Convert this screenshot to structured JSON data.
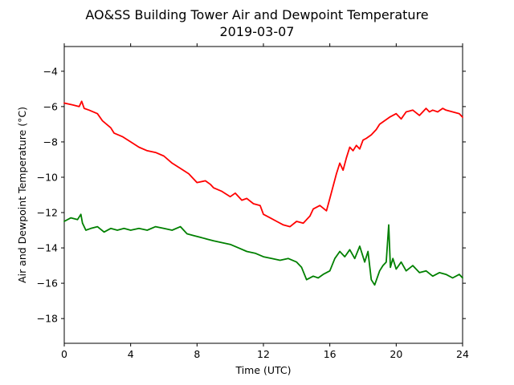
{
  "chart_data": {
    "type": "line",
    "title": "AO&SS Building Tower Air and Dewpoint Temperature",
    "subtitle": "2019-03-07",
    "xlabel": "Time (UTC)",
    "ylabel": "Air and Dewpoint Temperature (°C)",
    "xlim": [
      0,
      24
    ],
    "ylim": [
      -19.4,
      -2.6
    ],
    "xticks": [
      "0",
      "4",
      "8",
      "12",
      "16",
      "20",
      "24"
    ],
    "yticks": [
      "−4",
      "−6",
      "−8",
      "−10",
      "−12",
      "−14",
      "−16",
      "−18"
    ],
    "ytick_values": [
      -4,
      -6,
      -8,
      -10,
      -12,
      -14,
      -16,
      -18
    ],
    "grid": false,
    "legend": "none",
    "series": [
      {
        "color": "#ff0000",
        "x": [
          0,
          0.5,
          0.9,
          1.05,
          1.2,
          1.5,
          2.0,
          2.3,
          2.8,
          3.0,
          3.5,
          4.0,
          4.5,
          5.0,
          5.5,
          6.0,
          6.5,
          7.0,
          7.5,
          7.8,
          8.0,
          8.5,
          8.8,
          9.0,
          9.5,
          10.0,
          10.3,
          10.7,
          11.0,
          11.4,
          11.8,
          12.0,
          12.4,
          12.8,
          13.2,
          13.6,
          14.0,
          14.4,
          14.8,
          15.0,
          15.4,
          15.8,
          16.0,
          16.2,
          16.4,
          16.6,
          16.8,
          17.0,
          17.2,
          17.4,
          17.6,
          17.8,
          18.0,
          18.2,
          18.5,
          18.8,
          19.0,
          19.3,
          19.6,
          20.0,
          20.3,
          20.6,
          21.0,
          21.4,
          21.8,
          22.0,
          22.2,
          22.5,
          22.8,
          23.0,
          23.4,
          23.8,
          24.0
        ],
        "y": [
          -5.8,
          -5.9,
          -6.0,
          -5.7,
          -6.1,
          -6.2,
          -6.4,
          -6.8,
          -7.2,
          -7.5,
          -7.7,
          -8.0,
          -8.3,
          -8.5,
          -8.6,
          -8.8,
          -9.2,
          -9.5,
          -9.8,
          -10.1,
          -10.3,
          -10.2,
          -10.4,
          -10.6,
          -10.8,
          -11.1,
          -10.9,
          -11.3,
          -11.2,
          -11.5,
          -11.6,
          -12.1,
          -12.3,
          -12.5,
          -12.7,
          -12.8,
          -12.5,
          -12.6,
          -12.2,
          -11.8,
          -11.6,
          -11.9,
          -11.2,
          -10.5,
          -9.8,
          -9.2,
          -9.6,
          -8.9,
          -8.3,
          -8.5,
          -8.2,
          -8.4,
          -7.9,
          -7.8,
          -7.6,
          -7.3,
          -7.0,
          -6.8,
          -6.6,
          -6.4,
          -6.7,
          -6.3,
          -6.2,
          -6.5,
          -6.1,
          -6.3,
          -6.2,
          -6.3,
          -6.1,
          -6.2,
          -6.3,
          -6.4,
          -6.6
        ]
      },
      {
        "color": "#008000",
        "x": [
          0,
          0.4,
          0.8,
          1.0,
          1.1,
          1.3,
          1.6,
          2.0,
          2.4,
          2.8,
          3.2,
          3.6,
          4.0,
          4.5,
          5.0,
          5.5,
          6.0,
          6.5,
          7.0,
          7.4,
          7.8,
          8.2,
          8.6,
          9.0,
          9.5,
          10.0,
          10.5,
          11.0,
          11.5,
          12.0,
          12.5,
          13.0,
          13.5,
          14.0,
          14.3,
          14.6,
          15.0,
          15.3,
          15.6,
          16.0,
          16.3,
          16.6,
          16.9,
          17.2,
          17.5,
          17.8,
          18.1,
          18.3,
          18.5,
          18.7,
          19.0,
          19.2,
          19.4,
          19.55,
          19.65,
          19.8,
          20.0,
          20.3,
          20.6,
          21.0,
          21.4,
          21.8,
          22.2,
          22.6,
          23.0,
          23.4,
          23.8,
          24.0
        ],
        "y": [
          -12.5,
          -12.3,
          -12.4,
          -12.1,
          -12.6,
          -13.0,
          -12.9,
          -12.8,
          -13.1,
          -12.9,
          -13.0,
          -12.9,
          -13.0,
          -12.9,
          -13.0,
          -12.8,
          -12.9,
          -13.0,
          -12.8,
          -13.2,
          -13.3,
          -13.4,
          -13.5,
          -13.6,
          -13.7,
          -13.8,
          -14.0,
          -14.2,
          -14.3,
          -14.5,
          -14.6,
          -14.7,
          -14.6,
          -14.8,
          -15.1,
          -15.8,
          -15.6,
          -15.7,
          -15.5,
          -15.3,
          -14.6,
          -14.2,
          -14.5,
          -14.1,
          -14.6,
          -13.9,
          -14.8,
          -14.2,
          -15.8,
          -16.1,
          -15.3,
          -15.0,
          -14.8,
          -12.7,
          -15.1,
          -14.6,
          -15.2,
          -14.8,
          -15.3,
          -15.0,
          -15.4,
          -15.3,
          -15.6,
          -15.4,
          -15.5,
          -15.7,
          -15.5,
          -15.7
        ]
      }
    ]
  }
}
